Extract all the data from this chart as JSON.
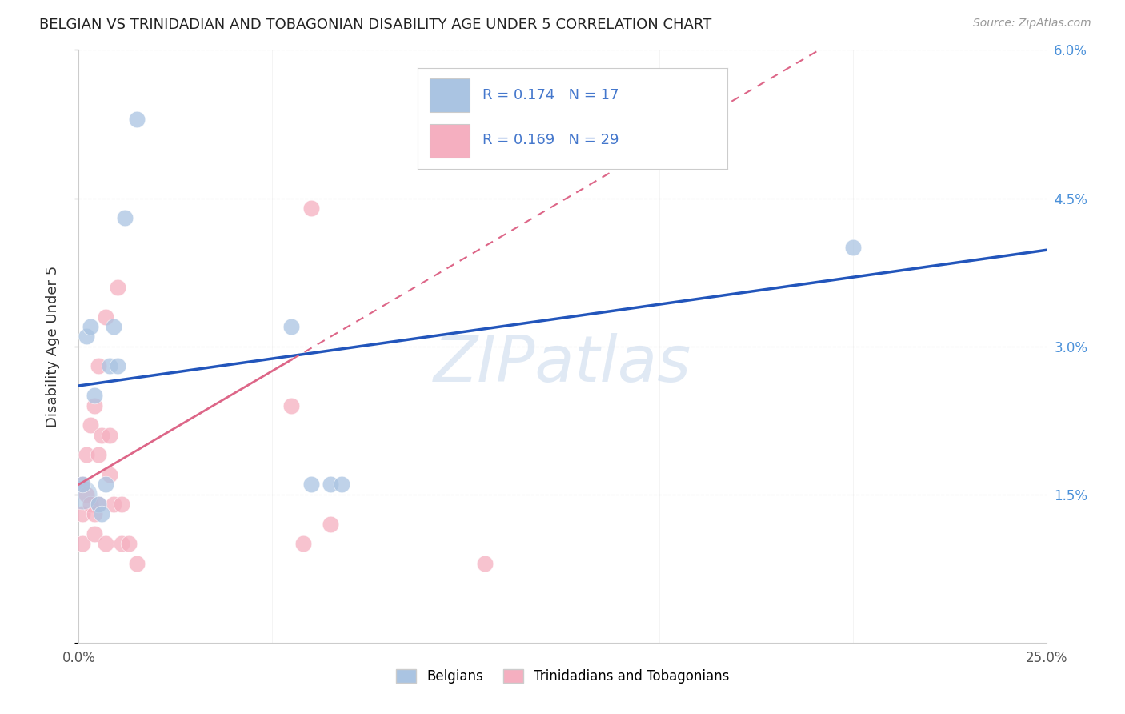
{
  "title": "BELGIAN VS TRINIDADIAN AND TOBAGONIAN DISABILITY AGE UNDER 5 CORRELATION CHART",
  "source": "Source: ZipAtlas.com",
  "ylabel": "Disability Age Under 5",
  "xlim": [
    0.0,
    0.25
  ],
  "ylim": [
    0.0,
    0.06
  ],
  "xticks": [
    0.0,
    0.05,
    0.1,
    0.15,
    0.2,
    0.25
  ],
  "xticklabels": [
    "0.0%",
    "",
    "",
    "",
    "",
    "25.0%"
  ],
  "yticks": [
    0.0,
    0.015,
    0.03,
    0.045,
    0.06
  ],
  "yticklabels_right": [
    "",
    "1.5%",
    "3.0%",
    "4.5%",
    "6.0%"
  ],
  "belgian_R": "0.174",
  "belgian_N": "17",
  "trinidadian_R": "0.169",
  "trinidadian_N": "29",
  "belgian_color": "#aac4e2",
  "trinidadian_color": "#f5afc0",
  "belgian_line_color": "#2255bb",
  "trinidadian_line_color": "#dd6688",
  "watermark": "ZIPatlas",
  "legend_label_belgian": "Belgians",
  "legend_label_trinidadian": "Trinidadians and Tobagonians",
  "belgians_x": [
    0.001,
    0.002,
    0.003,
    0.004,
    0.005,
    0.006,
    0.007,
    0.008,
    0.009,
    0.01,
    0.012,
    0.015,
    0.055,
    0.06,
    0.065,
    0.068,
    0.2
  ],
  "belgians_y": [
    0.016,
    0.031,
    0.032,
    0.025,
    0.014,
    0.013,
    0.016,
    0.028,
    0.032,
    0.028,
    0.043,
    0.053,
    0.032,
    0.016,
    0.016,
    0.016,
    0.04
  ],
  "trinidadians_x": [
    0.001,
    0.001,
    0.001,
    0.002,
    0.002,
    0.003,
    0.003,
    0.004,
    0.004,
    0.004,
    0.005,
    0.005,
    0.005,
    0.006,
    0.007,
    0.007,
    0.008,
    0.008,
    0.009,
    0.01,
    0.011,
    0.011,
    0.013,
    0.015,
    0.055,
    0.058,
    0.06,
    0.065,
    0.105
  ],
  "trinidadians_y": [
    0.016,
    0.013,
    0.01,
    0.015,
    0.019,
    0.014,
    0.022,
    0.024,
    0.013,
    0.011,
    0.014,
    0.019,
    0.028,
    0.021,
    0.033,
    0.01,
    0.017,
    0.021,
    0.014,
    0.036,
    0.014,
    0.01,
    0.01,
    0.008,
    0.024,
    0.01,
    0.044,
    0.012,
    0.008
  ],
  "bg_color": "#ffffff",
  "grid_color": "#cccccc",
  "trid_line_xmax": 0.055,
  "belgian_line_xstart": 0.0,
  "belgian_line_xend": 0.25
}
